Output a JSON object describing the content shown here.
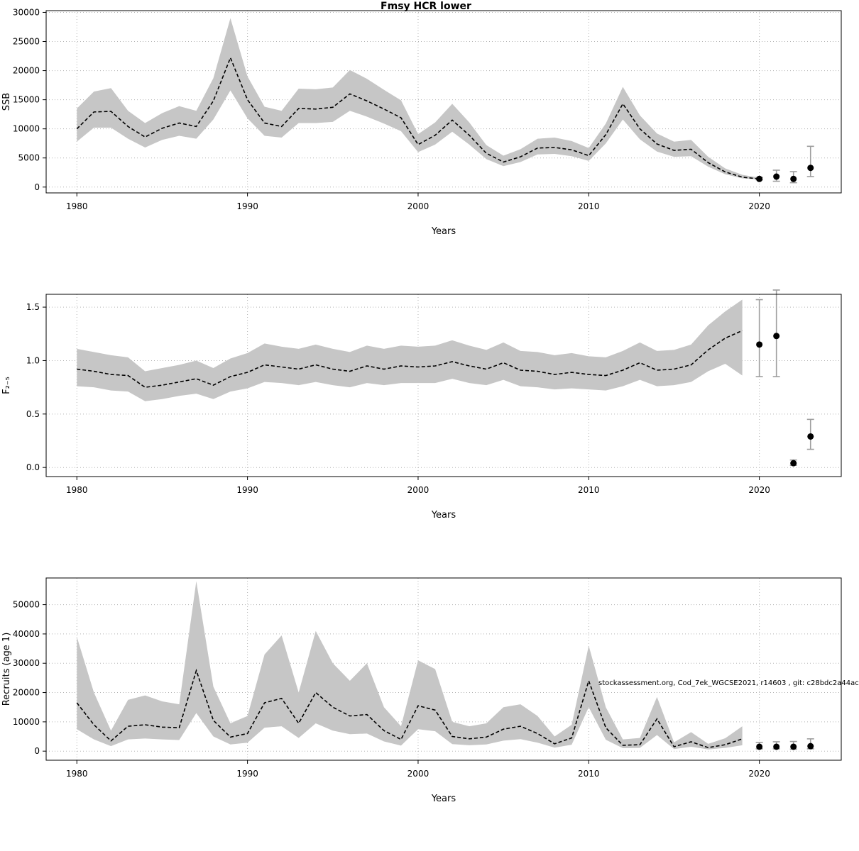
{
  "figure": {
    "title": "Fmsy HCR lower"
  },
  "style": {
    "background": "#ffffff",
    "band_color": "#c6c6c6",
    "line_color": "#000000",
    "point_color": "#000000",
    "errorbar_color": "#9e9e9e",
    "grid_color": "#b3b3b3",
    "frame_color": "#000000"
  },
  "chart_data": [
    {
      "type": "area",
      "title": "Fmsy HCR lower",
      "xlabel": "Years",
      "ylabel": "SSB",
      "xlim": [
        1978.2,
        2024.8
      ],
      "ylim": [
        -1000,
        30300
      ],
      "xticks": [
        1980,
        1990,
        2000,
        2010,
        2020
      ],
      "yticks": [
        0,
        5000,
        10000,
        15000,
        20000,
        25000,
        30000
      ],
      "ytick_decimals": 0,
      "grid": true,
      "legend": "none",
      "x": [
        1980,
        1981,
        1982,
        1983,
        1984,
        1985,
        1986,
        1987,
        1988,
        1989,
        1990,
        1991,
        1992,
        1993,
        1994,
        1995,
        1996,
        1997,
        1998,
        1999,
        2000,
        2001,
        2002,
        2003,
        2004,
        2005,
        2006,
        2007,
        2008,
        2009,
        2010,
        2011,
        2012,
        2013,
        2014,
        2015,
        2016,
        2017,
        2018,
        2019,
        2020
      ],
      "mean": [
        10000,
        12900,
        13000,
        10400,
        8600,
        10100,
        11000,
        10400,
        14800,
        22200,
        15000,
        11000,
        10400,
        13500,
        13400,
        13700,
        16000,
        14800,
        13400,
        11900,
        7300,
        8900,
        11500,
        8900,
        5800,
        4300,
        5200,
        6700,
        6800,
        6400,
        5400,
        9000,
        14300,
        10000,
        7400,
        6300,
        6500,
        4200,
        2600,
        1700,
        1400
      ],
      "lower": [
        7800,
        10200,
        10200,
        8300,
        6800,
        8100,
        8800,
        8300,
        11600,
        16600,
        11800,
        8800,
        8500,
        11000,
        11000,
        11200,
        13100,
        12100,
        10900,
        9600,
        6000,
        7300,
        9500,
        7300,
        4800,
        3600,
        4300,
        5600,
        5700,
        5300,
        4500,
        7500,
        11600,
        8200,
        6100,
        5200,
        5300,
        3500,
        2200,
        1500,
        1300
      ],
      "upper": [
        13500,
        16400,
        17000,
        13100,
        11000,
        12700,
        13900,
        13100,
        18700,
        29000,
        19000,
        13800,
        13100,
        16900,
        16800,
        17100,
        20100,
        18600,
        16700,
        14900,
        9100,
        11100,
        14300,
        11100,
        7200,
        5400,
        6500,
        8300,
        8500,
        7900,
        6700,
        10900,
        17200,
        12300,
        9200,
        7800,
        8100,
        5200,
        3200,
        2100,
        1600
      ],
      "points": [
        {
          "x": 2020,
          "y": 1400,
          "lo": 1250,
          "hi": 1650
        },
        {
          "x": 2021,
          "y": 1800,
          "lo": 1000,
          "hi": 2900
        },
        {
          "x": 2022,
          "y": 1400,
          "lo": 750,
          "hi": 2650
        },
        {
          "x": 2023,
          "y": 3300,
          "lo": 1800,
          "hi": 7000
        }
      ]
    },
    {
      "type": "area",
      "title": "",
      "xlabel": "Years",
      "ylabel": "F₂₋₅",
      "xlim": [
        1978.2,
        2024.8
      ],
      "ylim": [
        -0.085,
        1.62
      ],
      "xticks": [
        1980,
        1990,
        2000,
        2010,
        2020
      ],
      "yticks": [
        0.0,
        0.5,
        1.0,
        1.5
      ],
      "ytick_decimals": 1,
      "grid": true,
      "legend": "none",
      "x": [
        1980,
        1981,
        1982,
        1983,
        1984,
        1985,
        1986,
        1987,
        1988,
        1989,
        1990,
        1991,
        1992,
        1993,
        1994,
        1995,
        1996,
        1997,
        1998,
        1999,
        2000,
        2001,
        2002,
        2003,
        2004,
        2005,
        2006,
        2007,
        2008,
        2009,
        2010,
        2011,
        2012,
        2013,
        2014,
        2015,
        2016,
        2017,
        2018,
        2019
      ],
      "mean": [
        0.92,
        0.9,
        0.87,
        0.86,
        0.75,
        0.77,
        0.8,
        0.83,
        0.77,
        0.85,
        0.89,
        0.96,
        0.94,
        0.92,
        0.96,
        0.92,
        0.9,
        0.95,
        0.92,
        0.95,
        0.94,
        0.95,
        0.99,
        0.95,
        0.92,
        0.98,
        0.91,
        0.9,
        0.87,
        0.89,
        0.87,
        0.86,
        0.91,
        0.98,
        0.91,
        0.92,
        0.96,
        1.1,
        1.21,
        1.28
      ],
      "lower": [
        0.76,
        0.75,
        0.72,
        0.71,
        0.62,
        0.64,
        0.67,
        0.69,
        0.64,
        0.71,
        0.74,
        0.8,
        0.79,
        0.77,
        0.8,
        0.77,
        0.75,
        0.79,
        0.77,
        0.79,
        0.79,
        0.79,
        0.83,
        0.79,
        0.77,
        0.82,
        0.76,
        0.75,
        0.73,
        0.74,
        0.73,
        0.72,
        0.76,
        0.82,
        0.76,
        0.77,
        0.8,
        0.9,
        0.97,
        0.86
      ],
      "upper": [
        1.11,
        1.08,
        1.05,
        1.03,
        0.9,
        0.93,
        0.96,
        1.0,
        0.93,
        1.02,
        1.07,
        1.16,
        1.13,
        1.11,
        1.15,
        1.11,
        1.08,
        1.14,
        1.11,
        1.14,
        1.13,
        1.14,
        1.19,
        1.14,
        1.1,
        1.17,
        1.09,
        1.08,
        1.05,
        1.07,
        1.04,
        1.03,
        1.09,
        1.17,
        1.09,
        1.1,
        1.15,
        1.33,
        1.46,
        1.57
      ],
      "points": [
        {
          "x": 2020,
          "y": 1.15,
          "lo": 0.85,
          "hi": 1.57
        },
        {
          "x": 2021,
          "y": 1.23,
          "lo": 0.85,
          "hi": 1.66
        },
        {
          "x": 2022,
          "y": 0.04,
          "lo": 0.02,
          "hi": 0.07
        },
        {
          "x": 2023,
          "y": 0.29,
          "lo": 0.17,
          "hi": 0.45
        }
      ]
    },
    {
      "type": "area",
      "title": "",
      "xlabel": "Years",
      "ylabel": "Recruits (age 1)",
      "annotation": "stockassessment.org, Cod_7ek_WGCSE2021, r14603 , git: c28bdc2a44ac",
      "xlim": [
        1978.2,
        2024.8
      ],
      "ylim": [
        -3100,
        59100
      ],
      "xticks": [
        1980,
        1990,
        2000,
        2010,
        2020
      ],
      "yticks": [
        0,
        10000,
        20000,
        30000,
        40000,
        50000
      ],
      "ytick_decimals": 0,
      "grid": true,
      "legend": "none",
      "x": [
        1980,
        1981,
        1982,
        1983,
        1984,
        1985,
        1986,
        1987,
        1988,
        1989,
        1990,
        1991,
        1992,
        1993,
        1994,
        1995,
        1996,
        1997,
        1998,
        1999,
        2000,
        2001,
        2002,
        2003,
        2004,
        2005,
        2006,
        2007,
        2008,
        2009,
        2010,
        2011,
        2012,
        2013,
        2014,
        2015,
        2016,
        2017,
        2018,
        2019
      ],
      "mean": [
        16500,
        9000,
        3500,
        8500,
        9000,
        8200,
        8000,
        27500,
        10500,
        4800,
        6000,
        16500,
        18000,
        9500,
        20000,
        15000,
        12000,
        12500,
        7000,
        4000,
        15500,
        14000,
        5000,
        4200,
        4800,
        7500,
        8500,
        6000,
        2500,
        4500,
        24000,
        8000,
        2000,
        2200,
        11000,
        1500,
        3200,
        1200,
        2200,
        4200
      ],
      "lower": [
        7500,
        4000,
        1700,
        4000,
        4300,
        4000,
        3800,
        13000,
        5000,
        2300,
        2900,
        8000,
        8500,
        4500,
        9500,
        7000,
        5800,
        6000,
        3300,
        1900,
        7500,
        6800,
        2400,
        2000,
        2300,
        3600,
        4100,
        2900,
        1200,
        2200,
        15000,
        3900,
        1000,
        1100,
        5500,
        700,
        1500,
        600,
        1100,
        2000
      ],
      "upper": [
        39000,
        20000,
        7000,
        17500,
        19000,
        17000,
        16000,
        58000,
        22000,
        9500,
        12000,
        33000,
        39500,
        20000,
        41000,
        30000,
        24000,
        30000,
        15000,
        8500,
        31000,
        28000,
        10000,
        8500,
        9500,
        15000,
        16000,
        12000,
        5000,
        9000,
        36000,
        15000,
        4000,
        4500,
        18500,
        3000,
        6500,
        2500,
        4400,
        8500
      ],
      "points": [
        {
          "x": 2020,
          "y": 1500,
          "lo": 800,
          "hi": 3000
        },
        {
          "x": 2021,
          "y": 1500,
          "lo": 800,
          "hi": 3200
        },
        {
          "x": 2022,
          "y": 1500,
          "lo": 700,
          "hi": 3300
        },
        {
          "x": 2023,
          "y": 1700,
          "lo": 800,
          "hi": 4200
        }
      ]
    }
  ]
}
